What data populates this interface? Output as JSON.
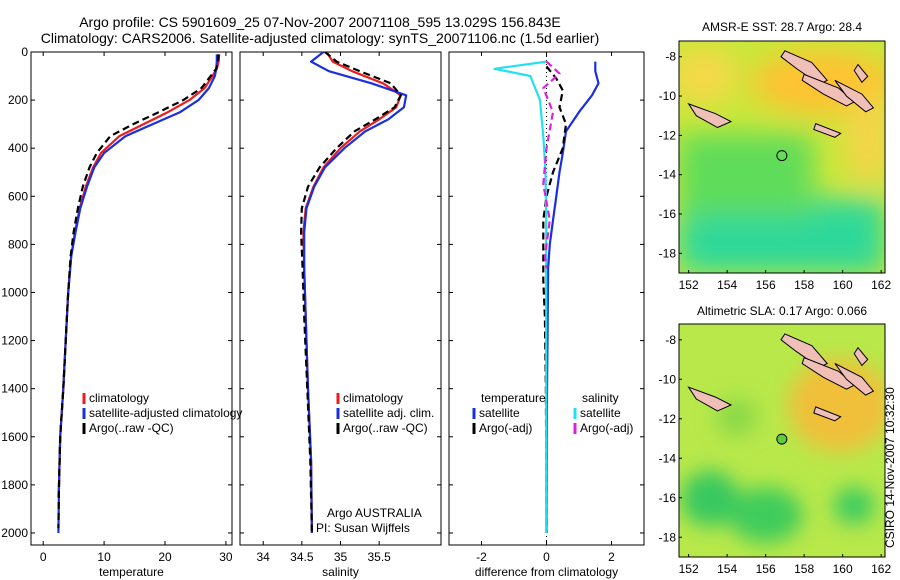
{
  "header": {
    "line1": "Argo profile: CS 5901609_25 07-Nov-2007 20071108_595 13.029S 156.843E",
    "line2": "Climatology: CARS2006. Satellite-adjusted climatology: synTS_20071106.nc (1.5d earlier)"
  },
  "colors": {
    "climatology": "#ee1c1c",
    "satellite": "#1a2fe0",
    "argo": "#000000",
    "cyan": "#22e0f0",
    "magenta": "#e020e0"
  },
  "credit": {
    "line1": "Argo AUSTRALIA",
    "line2": "PI: Susan Wijffels"
  },
  "stamp": "CSIRO 14-Nov-2007 10:32:30",
  "chart_data": [
    {
      "type": "line",
      "xlabel": "temperature",
      "xlim": [
        -2,
        31
      ],
      "ylim": [
        2050,
        0
      ],
      "xticks": [
        0,
        10,
        20,
        30
      ],
      "yticks": [
        0,
        200,
        400,
        600,
        800,
        1000,
        1200,
        1400,
        1600,
        1800,
        2000
      ],
      "legend": [
        "climatology",
        "satellite-adjusted climatology",
        "Argo(..raw -QC)"
      ],
      "series": [
        {
          "name": "climatology",
          "color": "#ee1c1c",
          "x": [
            28.9,
            28.8,
            28.5,
            27.8,
            26.5,
            24,
            20.5,
            16.5,
            12.5,
            9.5,
            8.2,
            7,
            6,
            5.2,
            4.6,
            4.1,
            3.7,
            3.3,
            2.8,
            2.6,
            2.5
          ],
          "y": [
            10,
            40,
            70,
            100,
            150,
            200,
            250,
            300,
            350,
            420,
            480,
            560,
            650,
            750,
            850,
            1000,
            1200,
            1400,
            1600,
            1800,
            1850
          ]
        },
        {
          "name": "satellite-adjusted climatology",
          "color": "#1a2fe0",
          "x": [
            28.5,
            28.5,
            28.4,
            28.2,
            27.2,
            25.5,
            22.5,
            18,
            13.5,
            10,
            8.4,
            7.2,
            6.1,
            5.3,
            4.6,
            4.1,
            3.7,
            3.3,
            2.8,
            2.6,
            2.5
          ],
          "y": [
            10,
            40,
            70,
            100,
            150,
            200,
            250,
            300,
            350,
            420,
            480,
            560,
            650,
            750,
            850,
            1000,
            1200,
            1400,
            1600,
            1800,
            2000
          ]
        },
        {
          "name": "Argo(..raw -QC)",
          "color": "#000000",
          "x": [
            28.8,
            28.7,
            28.4,
            27.5,
            26,
            23,
            19,
            14.8,
            11,
            8.8,
            7.6,
            6.5,
            5.7,
            5,
            4.5,
            4.1,
            3.7,
            3.3,
            2.8,
            2.6,
            2.5
          ],
          "y": [
            10,
            40,
            70,
            100,
            150,
            200,
            250,
            300,
            350,
            420,
            480,
            560,
            650,
            750,
            850,
            1000,
            1200,
            1400,
            1600,
            1800,
            1980
          ]
        }
      ]
    },
    {
      "type": "line",
      "xlabel": "salinity",
      "xlim": [
        33.7,
        36.3
      ],
      "ylim": [
        2050,
        0
      ],
      "xticks": [
        34,
        34.5,
        35,
        35.5
      ],
      "legend": [
        "climatology",
        "satellite adj. clim.",
        "Argo(..raw -QC)"
      ],
      "series": [
        {
          "name": "climatology",
          "color": "#ee1c1c",
          "x": [
            34.82,
            34.9,
            35.15,
            35.55,
            35.78,
            35.72,
            35.5,
            35.25,
            35.0,
            34.78,
            34.65,
            34.55,
            34.52,
            34.53,
            34.55,
            34.58,
            34.62,
            34.63
          ],
          "y": [
            0,
            40,
            80,
            130,
            180,
            230,
            280,
            330,
            400,
            480,
            560,
            650,
            750,
            900,
            1100,
            1400,
            1700,
            2000
          ]
        },
        {
          "name": "satellite adj. clim.",
          "color": "#1a2fe0",
          "x": [
            34.78,
            34.62,
            34.85,
            35.4,
            35.85,
            35.82,
            35.62,
            35.32,
            35.05,
            34.8,
            34.66,
            34.56,
            34.53,
            34.53,
            34.55,
            34.58,
            34.62,
            34.63
          ],
          "y": [
            0,
            40,
            80,
            130,
            180,
            230,
            280,
            330,
            400,
            480,
            560,
            650,
            750,
            900,
            1100,
            1400,
            1700,
            2000
          ]
        },
        {
          "name": "Argo(..raw -QC)",
          "color": "#000000",
          "x": [
            34.8,
            34.95,
            35.25,
            35.65,
            35.78,
            35.7,
            35.45,
            35.18,
            34.95,
            34.73,
            34.58,
            34.5,
            34.49,
            34.51,
            34.53,
            34.57,
            34.61,
            34.63
          ],
          "y": [
            0,
            40,
            80,
            130,
            180,
            230,
            280,
            330,
            400,
            480,
            560,
            650,
            750,
            900,
            1100,
            1400,
            1700,
            2000
          ]
        }
      ]
    },
    {
      "type": "line",
      "xlabel": "difference from climatology",
      "xlim": [
        -3,
        3
      ],
      "ylim": [
        2050,
        0
      ],
      "xticks": [
        -2,
        0,
        2
      ],
      "legend": [
        "temperature",
        "salinity",
        "satellite",
        "satellite",
        "Argo(-adj)",
        "Argo(-adj)"
      ],
      "series": [
        {
          "name": "satellite",
          "color": "#1a2fe0",
          "x": [
            1.5,
            1.5,
            1.6,
            1.4,
            1.0,
            0.6,
            0.5,
            0.4,
            0.3,
            0.2,
            0.1,
            0.05,
            0.03,
            0.01,
            0.0
          ],
          "y": [
            40,
            80,
            130,
            180,
            250,
            330,
            420,
            500,
            600,
            700,
            800,
            900,
            1200,
            1500,
            2000
          ]
        },
        {
          "name": "Argo(-adj)",
          "color": "#000000",
          "x": [
            0.0,
            0.3,
            0.5,
            0.4,
            0.6,
            0.5,
            0.2,
            0.0,
            -0.1,
            -0.1,
            -0.1,
            -0.05,
            -0.02,
            0.0
          ],
          "y": [
            60,
            110,
            160,
            230,
            300,
            400,
            500,
            600,
            700,
            850,
            950,
            1100,
            1400,
            2000
          ]
        },
        {
          "name": "satellite",
          "color": "#22e0f0",
          "x": [
            0.0,
            -1.6,
            -0.5,
            -0.2,
            -0.1,
            -0.03,
            -0.01,
            -0.01,
            -0.01,
            -0.01,
            -0.01
          ],
          "y": [
            40,
            70,
            100,
            200,
            350,
            500,
            700,
            900,
            1200,
            1600,
            2000
          ]
        },
        {
          "name": "Argo(-adj)",
          "color": "#e020e0",
          "x": [
            0.0,
            0.4,
            -0.1,
            0.2,
            0.0,
            -0.1,
            0.1,
            -0.05,
            0.0
          ],
          "y": [
            40,
            90,
            150,
            250,
            400,
            550,
            700,
            850,
            900
          ]
        }
      ]
    },
    {
      "type": "heatmap",
      "title": "AMSR-E SST: 28.7 Argo: 28.4",
      "xlim": [
        151.5,
        162.2
      ],
      "ylim": [
        -19,
        -7.2
      ],
      "xticks": [
        152,
        154,
        156,
        158,
        160,
        162
      ],
      "yticks": [
        -8,
        -10,
        -12,
        -14,
        -16,
        -18
      ],
      "marker": {
        "lon": 156.843,
        "lat": -13.029
      }
    },
    {
      "type": "heatmap",
      "title": "Altimetric SLA: 0.17 Argo: 0.066",
      "xlim": [
        151.5,
        162.2
      ],
      "ylim": [
        -19,
        -7.2
      ],
      "xticks": [
        152,
        154,
        156,
        158,
        160,
        162
      ],
      "yticks": [
        -8,
        -10,
        -12,
        -14,
        -16,
        -18
      ],
      "marker": {
        "lon": 156.843,
        "lat": -13.029
      }
    }
  ]
}
